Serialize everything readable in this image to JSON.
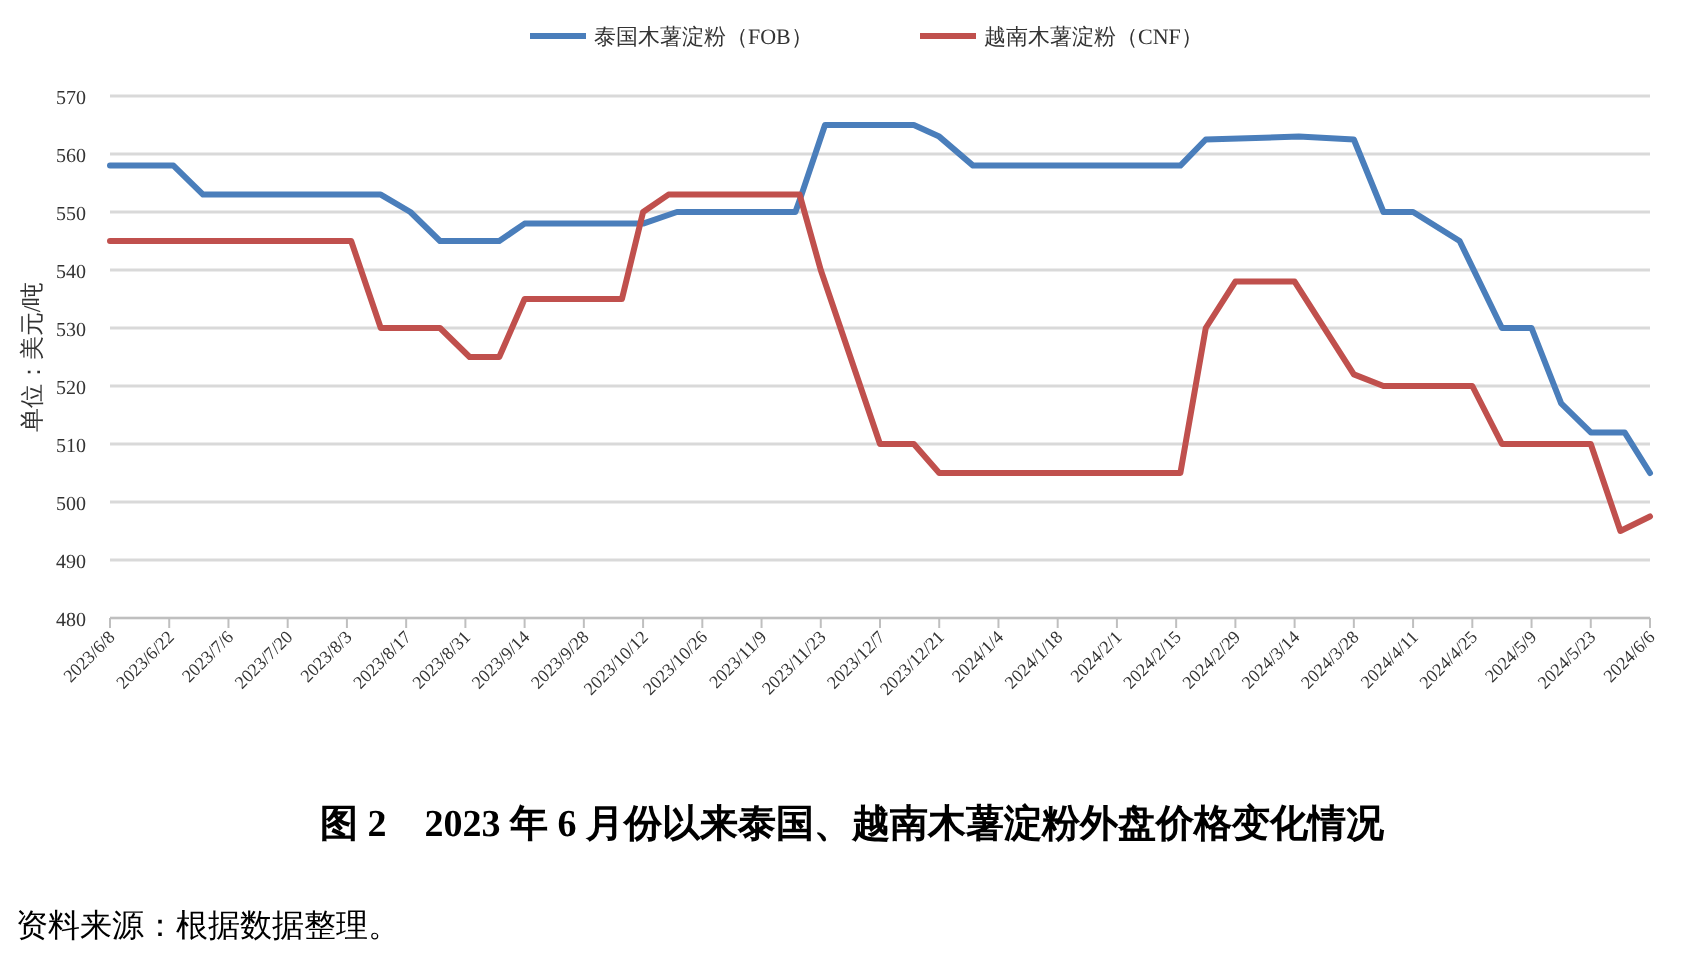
{
  "chart_data": {
    "type": "line",
    "title": "图 2　2023 年 6 月份以来泰国、越南木薯淀粉外盘价格变化情况",
    "ylabel": "单位：美元/吨",
    "annotations": [
      "资料来源：根据数据整理。"
    ],
    "xlim": [
      "2023-06-08",
      "2024-06-06"
    ],
    "xticks": [
      {
        "value": "2023-06-08",
        "label": "2023/6/8"
      },
      {
        "value": "2023-06-22",
        "label": "2023/6/22"
      },
      {
        "value": "2023-07-06",
        "label": "2023/7/6"
      },
      {
        "value": "2023-07-20",
        "label": "2023/7/20"
      },
      {
        "value": "2023-08-03",
        "label": "2023/8/3"
      },
      {
        "value": "2023-08-17",
        "label": "2023/8/17"
      },
      {
        "value": "2023-08-31",
        "label": "2023/8/31"
      },
      {
        "value": "2023-09-14",
        "label": "2023/9/14"
      },
      {
        "value": "2023-09-28",
        "label": "2023/9/28"
      },
      {
        "value": "2023-10-12",
        "label": "2023/10/12"
      },
      {
        "value": "2023-10-26",
        "label": "2023/10/26"
      },
      {
        "value": "2023-11-09",
        "label": "2023/11/9"
      },
      {
        "value": "2023-11-23",
        "label": "2023/11/23"
      },
      {
        "value": "2023-12-07",
        "label": "2023/12/7"
      },
      {
        "value": "2023-12-21",
        "label": "2023/12/21"
      },
      {
        "value": "2024-01-04",
        "label": "2024/1/4"
      },
      {
        "value": "2024-01-18",
        "label": "2024/1/18"
      },
      {
        "value": "2024-02-01",
        "label": "2024/2/1"
      },
      {
        "value": "2024-02-15",
        "label": "2024/2/15"
      },
      {
        "value": "2024-02-29",
        "label": "2024/2/29"
      },
      {
        "value": "2024-03-14",
        "label": "2024/3/14"
      },
      {
        "value": "2024-03-28",
        "label": "2024/3/28"
      },
      {
        "value": "2024-04-11",
        "label": "2024/4/11"
      },
      {
        "value": "2024-04-25",
        "label": "2024/4/25"
      },
      {
        "value": "2024-05-09",
        "label": "2024/5/9"
      },
      {
        "value": "2024-05-23",
        "label": "2024/5/23"
      },
      {
        "value": "2024-06-06",
        "label": "2024/6/6"
      }
    ],
    "ylim": [
      480,
      570
    ],
    "yticks": [
      480,
      490,
      500,
      510,
      520,
      530,
      540,
      550,
      560,
      570
    ],
    "grid": "y",
    "legend": "top",
    "marker": "none",
    "line_style": "solid",
    "series": [
      {
        "name": "泰国木薯淀粉（FOB）",
        "color": "#4a7ebb",
        "x": [
          "2023-06-08",
          "2023-06-23",
          "2023-06-30",
          "2023-08-11",
          "2023-08-18",
          "2023-08-25",
          "2023-09-08",
          "2023-09-14",
          "2023-10-12",
          "2023-10-20",
          "2023-11-17",
          "2023-11-18",
          "2023-11-24",
          "2023-12-15",
          "2023-12-21",
          "2023-12-29",
          "2024-01-12",
          "2024-02-16",
          "2024-02-22",
          "2024-03-15",
          "2024-03-28",
          "2024-04-04",
          "2024-04-11",
          "2024-04-22",
          "2024-05-02",
          "2024-05-09",
          "2024-05-16",
          "2024-05-23",
          "2024-05-31",
          "2024-06-06"
        ],
        "values": [
          558,
          558,
          553,
          553,
          550,
          545,
          545,
          548,
          548,
          550,
          550,
          552,
          565,
          565,
          563,
          558,
          558,
          558,
          562.5,
          563,
          562.5,
          550,
          550,
          545,
          530,
          530,
          517,
          512,
          512,
          505
        ]
      },
      {
        "name": "越南木薯淀粉（CNF）",
        "color": "#c0504d",
        "x": [
          "2023-06-08",
          "2023-08-04",
          "2023-08-11",
          "2023-08-25",
          "2023-09-01",
          "2023-09-08",
          "2023-09-14",
          "2023-10-07",
          "2023-10-12",
          "2023-10-18",
          "2023-11-18",
          "2023-11-23",
          "2023-12-07",
          "2023-12-15",
          "2023-12-21",
          "2024-02-16",
          "2024-02-22",
          "2024-02-29",
          "2024-03-14",
          "2024-03-28",
          "2024-04-04",
          "2024-04-13",
          "2024-04-25",
          "2024-05-02",
          "2024-05-23",
          "2024-05-30",
          "2024-06-06"
        ],
        "values": [
          545,
          545,
          530,
          530,
          525,
          525,
          535,
          535,
          550,
          553,
          553,
          540,
          510,
          510,
          505,
          505,
          530,
          538,
          538,
          522,
          520,
          520,
          520,
          510,
          510,
          495,
          497.5
        ]
      }
    ]
  }
}
